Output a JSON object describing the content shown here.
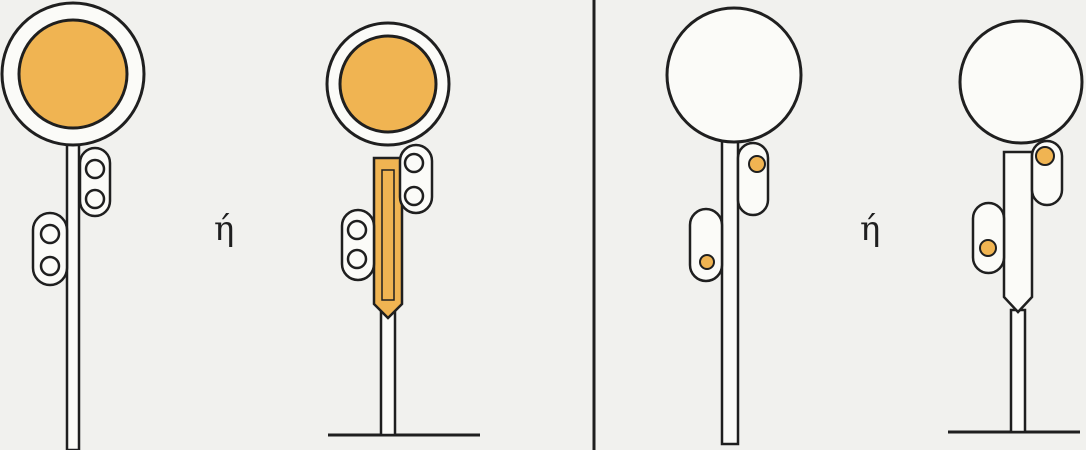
{
  "labels": {
    "or_left": "ή",
    "or_right": "ή"
  },
  "colors": {
    "background": "#f1f1ee",
    "ink": "#1f1f1f",
    "amber": "#f0b452",
    "white": "#fbfbf8"
  }
}
